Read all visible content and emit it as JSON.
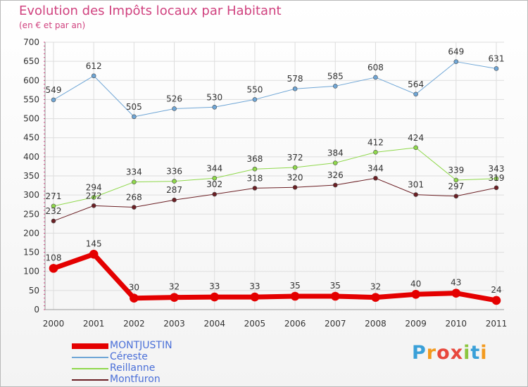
{
  "title": "Evolution des Impôts locaux par Habitant",
  "subtitle": "(en € et par an)",
  "brand": {
    "letters": [
      "P",
      "r",
      "o",
      "x",
      "i",
      "t",
      "i"
    ],
    "colors": [
      "#3aa0d8",
      "#f39a1e",
      "#e8483c",
      "#e8483c",
      "#8cc63f",
      "#3aa0d8",
      "#f39a1e"
    ]
  },
  "chart_data": {
    "type": "line",
    "x": [
      "2000",
      "2001",
      "2002",
      "2003",
      "2004",
      "2005",
      "2006",
      "2007",
      "2008",
      "2009",
      "2010",
      "2011"
    ],
    "ylim": [
      0,
      700
    ],
    "yticks": [
      0,
      50,
      100,
      150,
      200,
      250,
      300,
      350,
      400,
      450,
      500,
      550,
      600,
      650,
      700
    ],
    "grid": true,
    "legend_position": "bottom-left",
    "series": [
      {
        "name": "MONTJUSTIN",
        "color": "#e40000",
        "values": [
          108,
          145,
          30,
          32,
          33,
          33,
          35,
          35,
          32,
          40,
          43,
          24
        ]
      },
      {
        "name": "Céreste",
        "color": "#6fa6d6",
        "values": [
          549,
          612,
          505,
          526,
          530,
          550,
          578,
          585,
          608,
          564,
          649,
          631
        ]
      },
      {
        "name": "Reillanne",
        "color": "#8fd84b",
        "values": [
          271,
          294,
          334,
          336,
          344,
          368,
          372,
          384,
          412,
          424,
          339,
          343
        ]
      },
      {
        "name": "Montfuron",
        "color": "#6b1f24",
        "values": [
          232,
          272,
          268,
          287,
          302,
          318,
          320,
          326,
          344,
          301,
          297,
          319
        ]
      }
    ]
  }
}
